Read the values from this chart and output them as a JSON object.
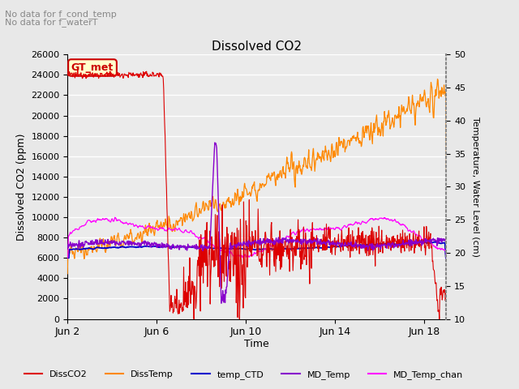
{
  "title": "Dissolved CO2",
  "title_note1": "No data for f_cond_temp",
  "title_note2": "No data for f_waterT",
  "annotation_box": "GT_met",
  "xlabel": "Time",
  "ylabel_left": "Dissolved CO2 (ppm)",
  "ylabel_right": "Temperature, Water Level (cm)",
  "ylim_left": [
    0,
    26000
  ],
  "ylim_right": [
    10,
    50
  ],
  "yticks_left": [
    0,
    2000,
    4000,
    6000,
    8000,
    10000,
    12000,
    14000,
    16000,
    18000,
    20000,
    22000,
    24000,
    26000
  ],
  "yticks_right": [
    10,
    15,
    20,
    25,
    30,
    35,
    40,
    45,
    50
  ],
  "xtick_labels": [
    "Jun 2",
    "Jun 6",
    "Jun 10",
    "Jun 14",
    "Jun 18"
  ],
  "xtick_days": [
    0,
    4,
    8,
    12,
    16
  ],
  "n_days": 17,
  "legend_entries": [
    "DissCO2",
    "DissTemp",
    "temp_CTD",
    "MD_Temp",
    "MD_Temp_chan"
  ],
  "colors": {
    "DissCO2": "#dd0000",
    "DissTemp": "#ff8800",
    "temp_CTD": "#0000cc",
    "MD_Temp": "#8800cc",
    "MD_Temp_chan": "#ff00ff"
  },
  "bg_color": "#e8e8e8",
  "plot_bg_color": "#ebebeb",
  "grid_color": "#ffffff"
}
